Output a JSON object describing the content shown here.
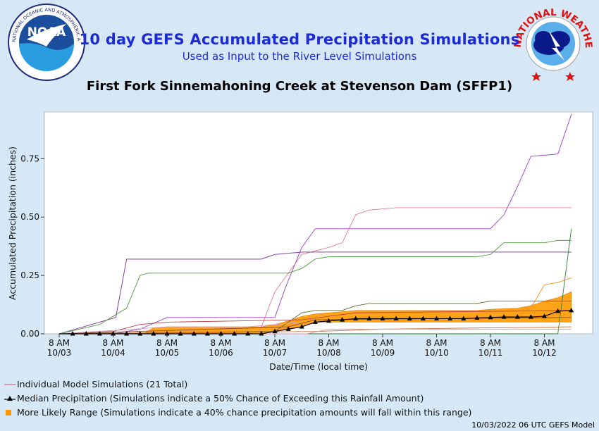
{
  "header": {
    "title": "10 day GEFS Accumulated Precipitation Simulations",
    "subtitle": "Used as Input to the River Level Simulations",
    "station": "First Fork Sinnemahoning Creek at Stevenson Dam (SFFP1)",
    "footer": "10/03/2022 06 UTC GEFS Model"
  },
  "logos": {
    "noaa_text": "NOAA",
    "noaa_ring": "NATIONAL OCEANIC AND ATMOSPHERIC ADMINISTRATION · U.S. DEPARTMENT OF COMMERCE ·",
    "nws_ring": "NATIONAL WEATHER SERVICE"
  },
  "legend": [
    {
      "label": "Individual Model Simulations (21 Total)",
      "color": "#d46a7a"
    },
    {
      "label": "Median Precipitation (Simulations indicate a 50% Chance of Exceeding this Rainfall Amount)",
      "color": "#000000"
    },
    {
      "label": "More Likely Range (Simulations indicate a 40% chance precipitation amounts will fall within this range)",
      "color": "#ff9900"
    }
  ],
  "chart_data": {
    "type": "line",
    "xlabel": "Date/Time (local time)",
    "ylabel": "Accumulated Precipitation (inches)",
    "xlim": [
      0,
      9.6
    ],
    "ylim": [
      0,
      0.95
    ],
    "x_ticks": [
      {
        "x": 0,
        "top": "8 AM",
        "bottom": "10/03"
      },
      {
        "x": 1,
        "top": "8 AM",
        "bottom": "10/04"
      },
      {
        "x": 2,
        "top": "8 AM",
        "bottom": "10/05"
      },
      {
        "x": 3,
        "top": "8 AM",
        "bottom": "10/06"
      },
      {
        "x": 4,
        "top": "8 AM",
        "bottom": "10/07"
      },
      {
        "x": 5,
        "top": "8 AM",
        "bottom": "10/08"
      },
      {
        "x": 6,
        "top": "8 AM",
        "bottom": "10/09"
      },
      {
        "x": 7,
        "top": "8 AM",
        "bottom": "10/10"
      },
      {
        "x": 8,
        "top": "8 AM",
        "bottom": "10/11"
      },
      {
        "x": 9,
        "top": "8 AM",
        "bottom": "10/12"
      }
    ],
    "y_ticks": [
      {
        "y": 0,
        "label": "0.00"
      },
      {
        "y": 0.25,
        "label": "0.25"
      },
      {
        "y": 0.5,
        "label": "0.50"
      },
      {
        "y": 0.75,
        "label": "0.75"
      }
    ],
    "series": [
      {
        "color": "#9a3cc8",
        "points": [
          [
            0,
            0
          ],
          [
            1,
            0
          ],
          [
            1.5,
            0.02
          ],
          [
            2,
            0.07
          ],
          [
            4,
            0.07
          ],
          [
            4.2,
            0.2
          ],
          [
            4.5,
            0.37
          ],
          [
            4.75,
            0.45
          ],
          [
            8,
            0.45
          ],
          [
            8.25,
            0.51
          ],
          [
            8.5,
            0.63
          ],
          [
            8.75,
            0.76
          ],
          [
            9.25,
            0.77
          ],
          [
            9.5,
            0.94
          ]
        ]
      },
      {
        "color": "#e07a9a",
        "points": [
          [
            0,
            0
          ],
          [
            3.7,
            0
          ],
          [
            4.0,
            0.18
          ],
          [
            4.5,
            0.34
          ],
          [
            5,
            0.37
          ],
          [
            5.25,
            0.39
          ],
          [
            5.5,
            0.51
          ],
          [
            5.75,
            0.53
          ],
          [
            6.25,
            0.54
          ],
          [
            9.5,
            0.54
          ]
        ]
      },
      {
        "color": "#7a2a9a",
        "points": [
          [
            0,
            0
          ],
          [
            1.05,
            0.07
          ],
          [
            1.25,
            0.32
          ],
          [
            3.75,
            0.32
          ],
          [
            4,
            0.34
          ],
          [
            4.5,
            0.35
          ],
          [
            9.5,
            0.35
          ]
        ]
      },
      {
        "color": "#4a9a3a",
        "points": [
          [
            0,
            0
          ],
          [
            0.75,
            0.04
          ],
          [
            1.25,
            0.11
          ],
          [
            1.5,
            0.25
          ],
          [
            1.65,
            0.26
          ],
          [
            3.75,
            0.26
          ],
          [
            4.25,
            0.26
          ],
          [
            4.5,
            0.28
          ],
          [
            4.75,
            0.32
          ],
          [
            5,
            0.33
          ],
          [
            7.75,
            0.33
          ],
          [
            8,
            0.34
          ],
          [
            8.25,
            0.39
          ],
          [
            9.0,
            0.39
          ],
          [
            9.25,
            0.4
          ],
          [
            9.5,
            0.4
          ]
        ]
      },
      {
        "color": "#2e7d32",
        "points": [
          [
            0,
            0
          ],
          [
            9.25,
            0
          ],
          [
            9.5,
            0.45
          ]
        ]
      },
      {
        "color": "#ff8c1a",
        "points": [
          [
            0,
            0
          ],
          [
            3.9,
            0.01
          ],
          [
            4.4,
            0.05
          ],
          [
            5.75,
            0.05
          ],
          [
            8.5,
            0.07
          ],
          [
            8.8,
            0.13
          ],
          [
            9.0,
            0.21
          ],
          [
            9.25,
            0.22
          ],
          [
            9.5,
            0.24
          ]
        ]
      },
      {
        "color": "#556b2f",
        "points": [
          [
            0,
            0
          ],
          [
            4,
            0.01
          ],
          [
            4.5,
            0.09
          ],
          [
            4.75,
            0.1
          ],
          [
            5.25,
            0.1
          ],
          [
            5.5,
            0.12
          ],
          [
            5.75,
            0.13
          ],
          [
            7.75,
            0.13
          ],
          [
            8,
            0.14
          ],
          [
            9.5,
            0.14
          ]
        ]
      },
      {
        "color": "#c04040",
        "points": [
          [
            0,
            0
          ],
          [
            1.0,
            0.01
          ],
          [
            1.5,
            0.04
          ],
          [
            2,
            0.05
          ],
          [
            4.5,
            0.06
          ],
          [
            5.5,
            0.09
          ],
          [
            9.5,
            0.1
          ]
        ]
      },
      {
        "color": "#d4a0c8",
        "points": [
          [
            0,
            0
          ],
          [
            1.4,
            0.02
          ],
          [
            2,
            0.03
          ],
          [
            3.5,
            0.03
          ],
          [
            4.5,
            0.05
          ],
          [
            9.5,
            0.05
          ]
        ]
      },
      {
        "color": "#8a4a2a",
        "points": [
          [
            0,
            0
          ],
          [
            4.25,
            0.03
          ],
          [
            4.75,
            0.06
          ],
          [
            9.5,
            0.07
          ]
        ]
      },
      {
        "color": "#c86a3a",
        "points": [
          [
            0,
            0
          ],
          [
            4.75,
            0.01
          ],
          [
            6,
            0.02
          ],
          [
            9.5,
            0.03
          ]
        ]
      },
      {
        "color": "#e09aa8",
        "points": [
          [
            0,
            0
          ],
          [
            4.6,
            0.0
          ],
          [
            5.0,
            0.02
          ],
          [
            9.5,
            0.02
          ]
        ]
      }
    ],
    "median": {
      "color": "#000000",
      "points": [
        [
          0,
          0
        ],
        [
          0.25,
          0
        ],
        [
          0.5,
          0
        ],
        [
          0.75,
          0
        ],
        [
          1,
          0
        ],
        [
          1.25,
          0
        ],
        [
          1.5,
          0
        ],
        [
          1.75,
          0
        ],
        [
          2,
          0
        ],
        [
          2.25,
          0
        ],
        [
          2.5,
          0
        ],
        [
          2.75,
          0
        ],
        [
          3,
          0
        ],
        [
          3.25,
          0
        ],
        [
          3.5,
          0
        ],
        [
          3.75,
          0
        ],
        [
          4,
          0.01
        ],
        [
          4.25,
          0.02
        ],
        [
          4.5,
          0.03
        ],
        [
          4.75,
          0.05
        ],
        [
          5,
          0.055
        ],
        [
          5.25,
          0.06
        ],
        [
          5.5,
          0.065
        ],
        [
          5.75,
          0.065
        ],
        [
          6,
          0.065
        ],
        [
          6.25,
          0.065
        ],
        [
          6.5,
          0.065
        ],
        [
          6.75,
          0.065
        ],
        [
          7,
          0.065
        ],
        [
          7.25,
          0.065
        ],
        [
          7.5,
          0.065
        ],
        [
          7.75,
          0.068
        ],
        [
          8,
          0.07
        ],
        [
          8.25,
          0.072
        ],
        [
          8.5,
          0.072
        ],
        [
          8.75,
          0.072
        ],
        [
          9,
          0.075
        ],
        [
          9.25,
          0.097
        ],
        [
          9.5,
          0.1
        ]
      ]
    },
    "band": {
      "color": "#ff9900",
      "upper": [
        [
          1.55,
          0
        ],
        [
          1.75,
          0.025
        ],
        [
          2,
          0.03
        ],
        [
          3.75,
          0.03
        ],
        [
          4,
          0.04
        ],
        [
          4.25,
          0.055
        ],
        [
          4.5,
          0.075
        ],
        [
          4.75,
          0.085
        ],
        [
          5,
          0.09
        ],
        [
          5.25,
          0.095
        ],
        [
          5.5,
          0.1
        ],
        [
          7.75,
          0.1
        ],
        [
          8,
          0.105
        ],
        [
          8.5,
          0.11
        ],
        [
          8.75,
          0.12
        ],
        [
          9,
          0.14
        ],
        [
          9.25,
          0.155
        ],
        [
          9.5,
          0.18
        ]
      ],
      "lower": [
        [
          1.55,
          0
        ],
        [
          3.75,
          0
        ],
        [
          4,
          0.01
        ],
        [
          4.5,
          0.03
        ],
        [
          4.75,
          0.05
        ],
        [
          5,
          0.05
        ],
        [
          9.5,
          0.05
        ]
      ]
    }
  }
}
